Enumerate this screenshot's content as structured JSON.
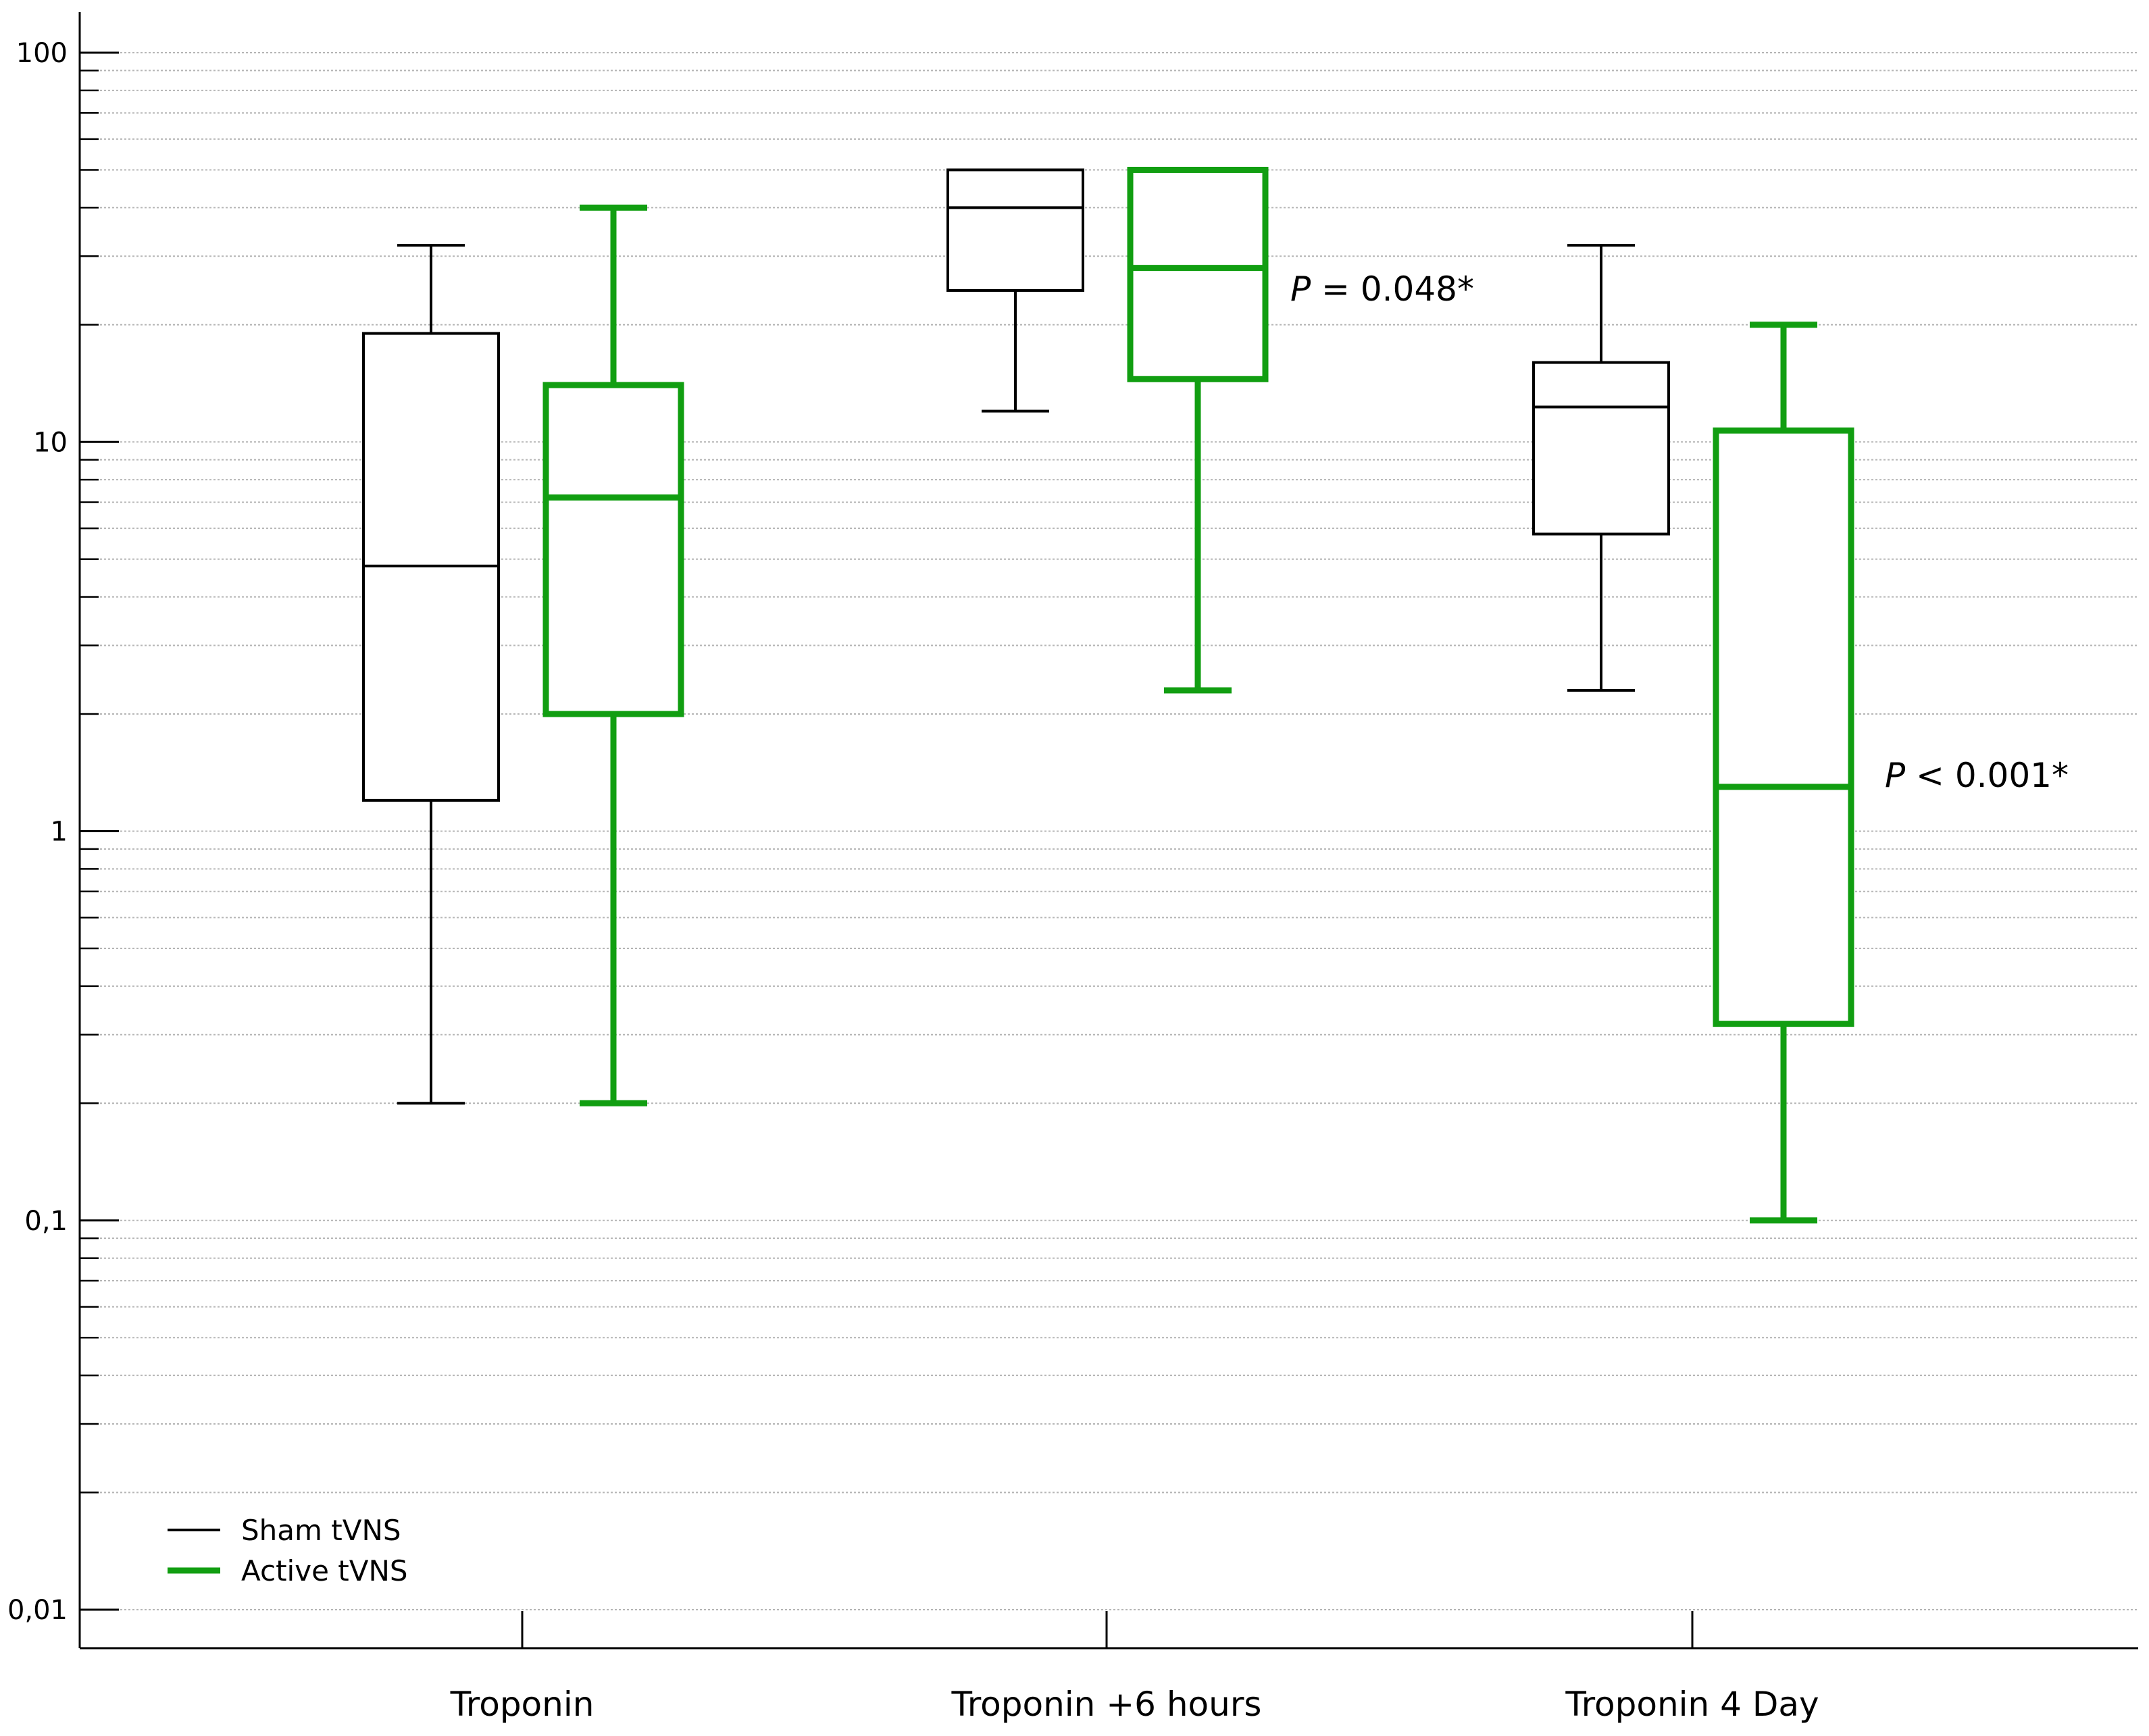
{
  "chart_data": {
    "type": "box",
    "title": "",
    "xlabel": "",
    "ylabel": "",
    "yscale": "log",
    "ylim": [
      0.01,
      100
    ],
    "y_tick_labels": [
      "100",
      "10",
      "1",
      "0,1",
      "0,01"
    ],
    "categories": [
      "Troponin",
      "Troponin +6 hours",
      "Troponin 4 Day"
    ],
    "grid": "horizontal, dashed, at every log minor tick",
    "legend_position": "bottom-left",
    "series": [
      {
        "name": "Sham tVNS",
        "color": "#000000",
        "boxes": [
          {
            "min": 0.2,
            "q1": 1.2,
            "median": 4.8,
            "q3": 19,
            "max": 32
          },
          {
            "min": 12,
            "q1": 24.5,
            "median": 40,
            "q3": 50,
            "max": 50
          },
          {
            "min": 2.3,
            "q1": 5.8,
            "median": 12.3,
            "q3": 16,
            "max": 32
          }
        ]
      },
      {
        "name": "Active tVNS",
        "color": "#119e11",
        "boxes": [
          {
            "min": 0.2,
            "q1": 2.0,
            "median": 7.2,
            "q3": 14,
            "max": 40
          },
          {
            "min": 2.3,
            "q1": 14.5,
            "median": 28,
            "q3": 50,
            "max": 50
          },
          {
            "min": 0.1,
            "q1": 0.32,
            "median": 1.3,
            "q3": 10.7,
            "max": 20
          }
        ]
      }
    ],
    "annotations": [
      {
        "category": "Troponin +6 hours",
        "p_italic": "P",
        "text": " = 0.048*"
      },
      {
        "category": "Troponin 4 Day",
        "p_italic": "P",
        "text": " < 0.001*"
      }
    ]
  }
}
